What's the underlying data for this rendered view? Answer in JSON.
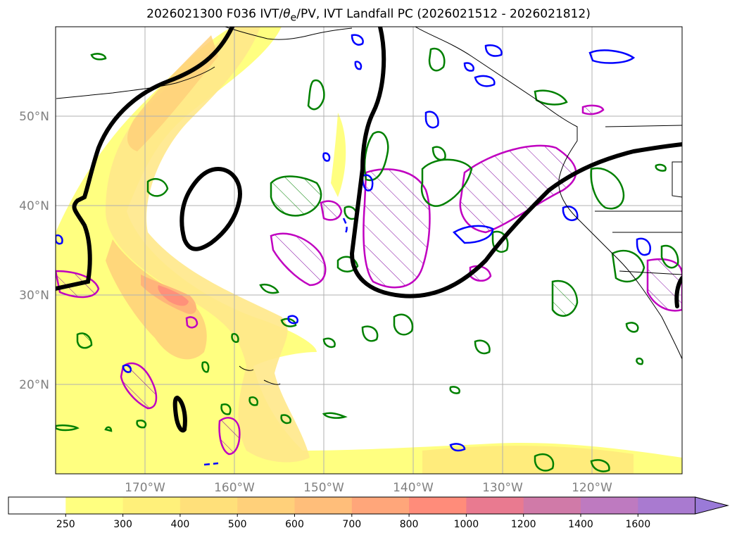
{
  "title": {
    "prefix": "2026021300 F036 IVT/",
    "theta": "θ",
    "sub": "e",
    "suffix": "/PV, IVT Landfall PC (2026021512 - 2026021812)"
  },
  "axes": {
    "lat_labels": [
      "50°N",
      "40°N",
      "30°N",
      "20°N"
    ],
    "lat_values": [
      50,
      40,
      30,
      20
    ],
    "lon_labels": [
      "170°W",
      "160°W",
      "150°W",
      "140°W",
      "130°W",
      "120°W"
    ],
    "lon_values": [
      -170,
      -160,
      -150,
      -140,
      -130,
      -120
    ],
    "lon_range": [
      -180,
      -110
    ],
    "lat_range": [
      10,
      60
    ]
  },
  "colorbar": {
    "levels": [
      "250",
      "300",
      "400",
      "500",
      "600",
      "700",
      "800",
      "1000",
      "1200",
      "1400",
      "1600"
    ],
    "colors": [
      "#ffffff",
      "#ffff80",
      "#fff07a",
      "#ffe07a",
      "#ffd07a",
      "#ffbe7a",
      "#ffa67a",
      "#ff8c7a",
      "#e97a90",
      "#d07aa8",
      "#be7ac0",
      "#a97ad0",
      "#9a7ad8"
    ],
    "extend": "max"
  },
  "legend_colors": {
    "pv": "#0000ff",
    "theta_e": "#008000",
    "landfall_pc": "#c000c0",
    "ivt_zero": "#000000"
  }
}
